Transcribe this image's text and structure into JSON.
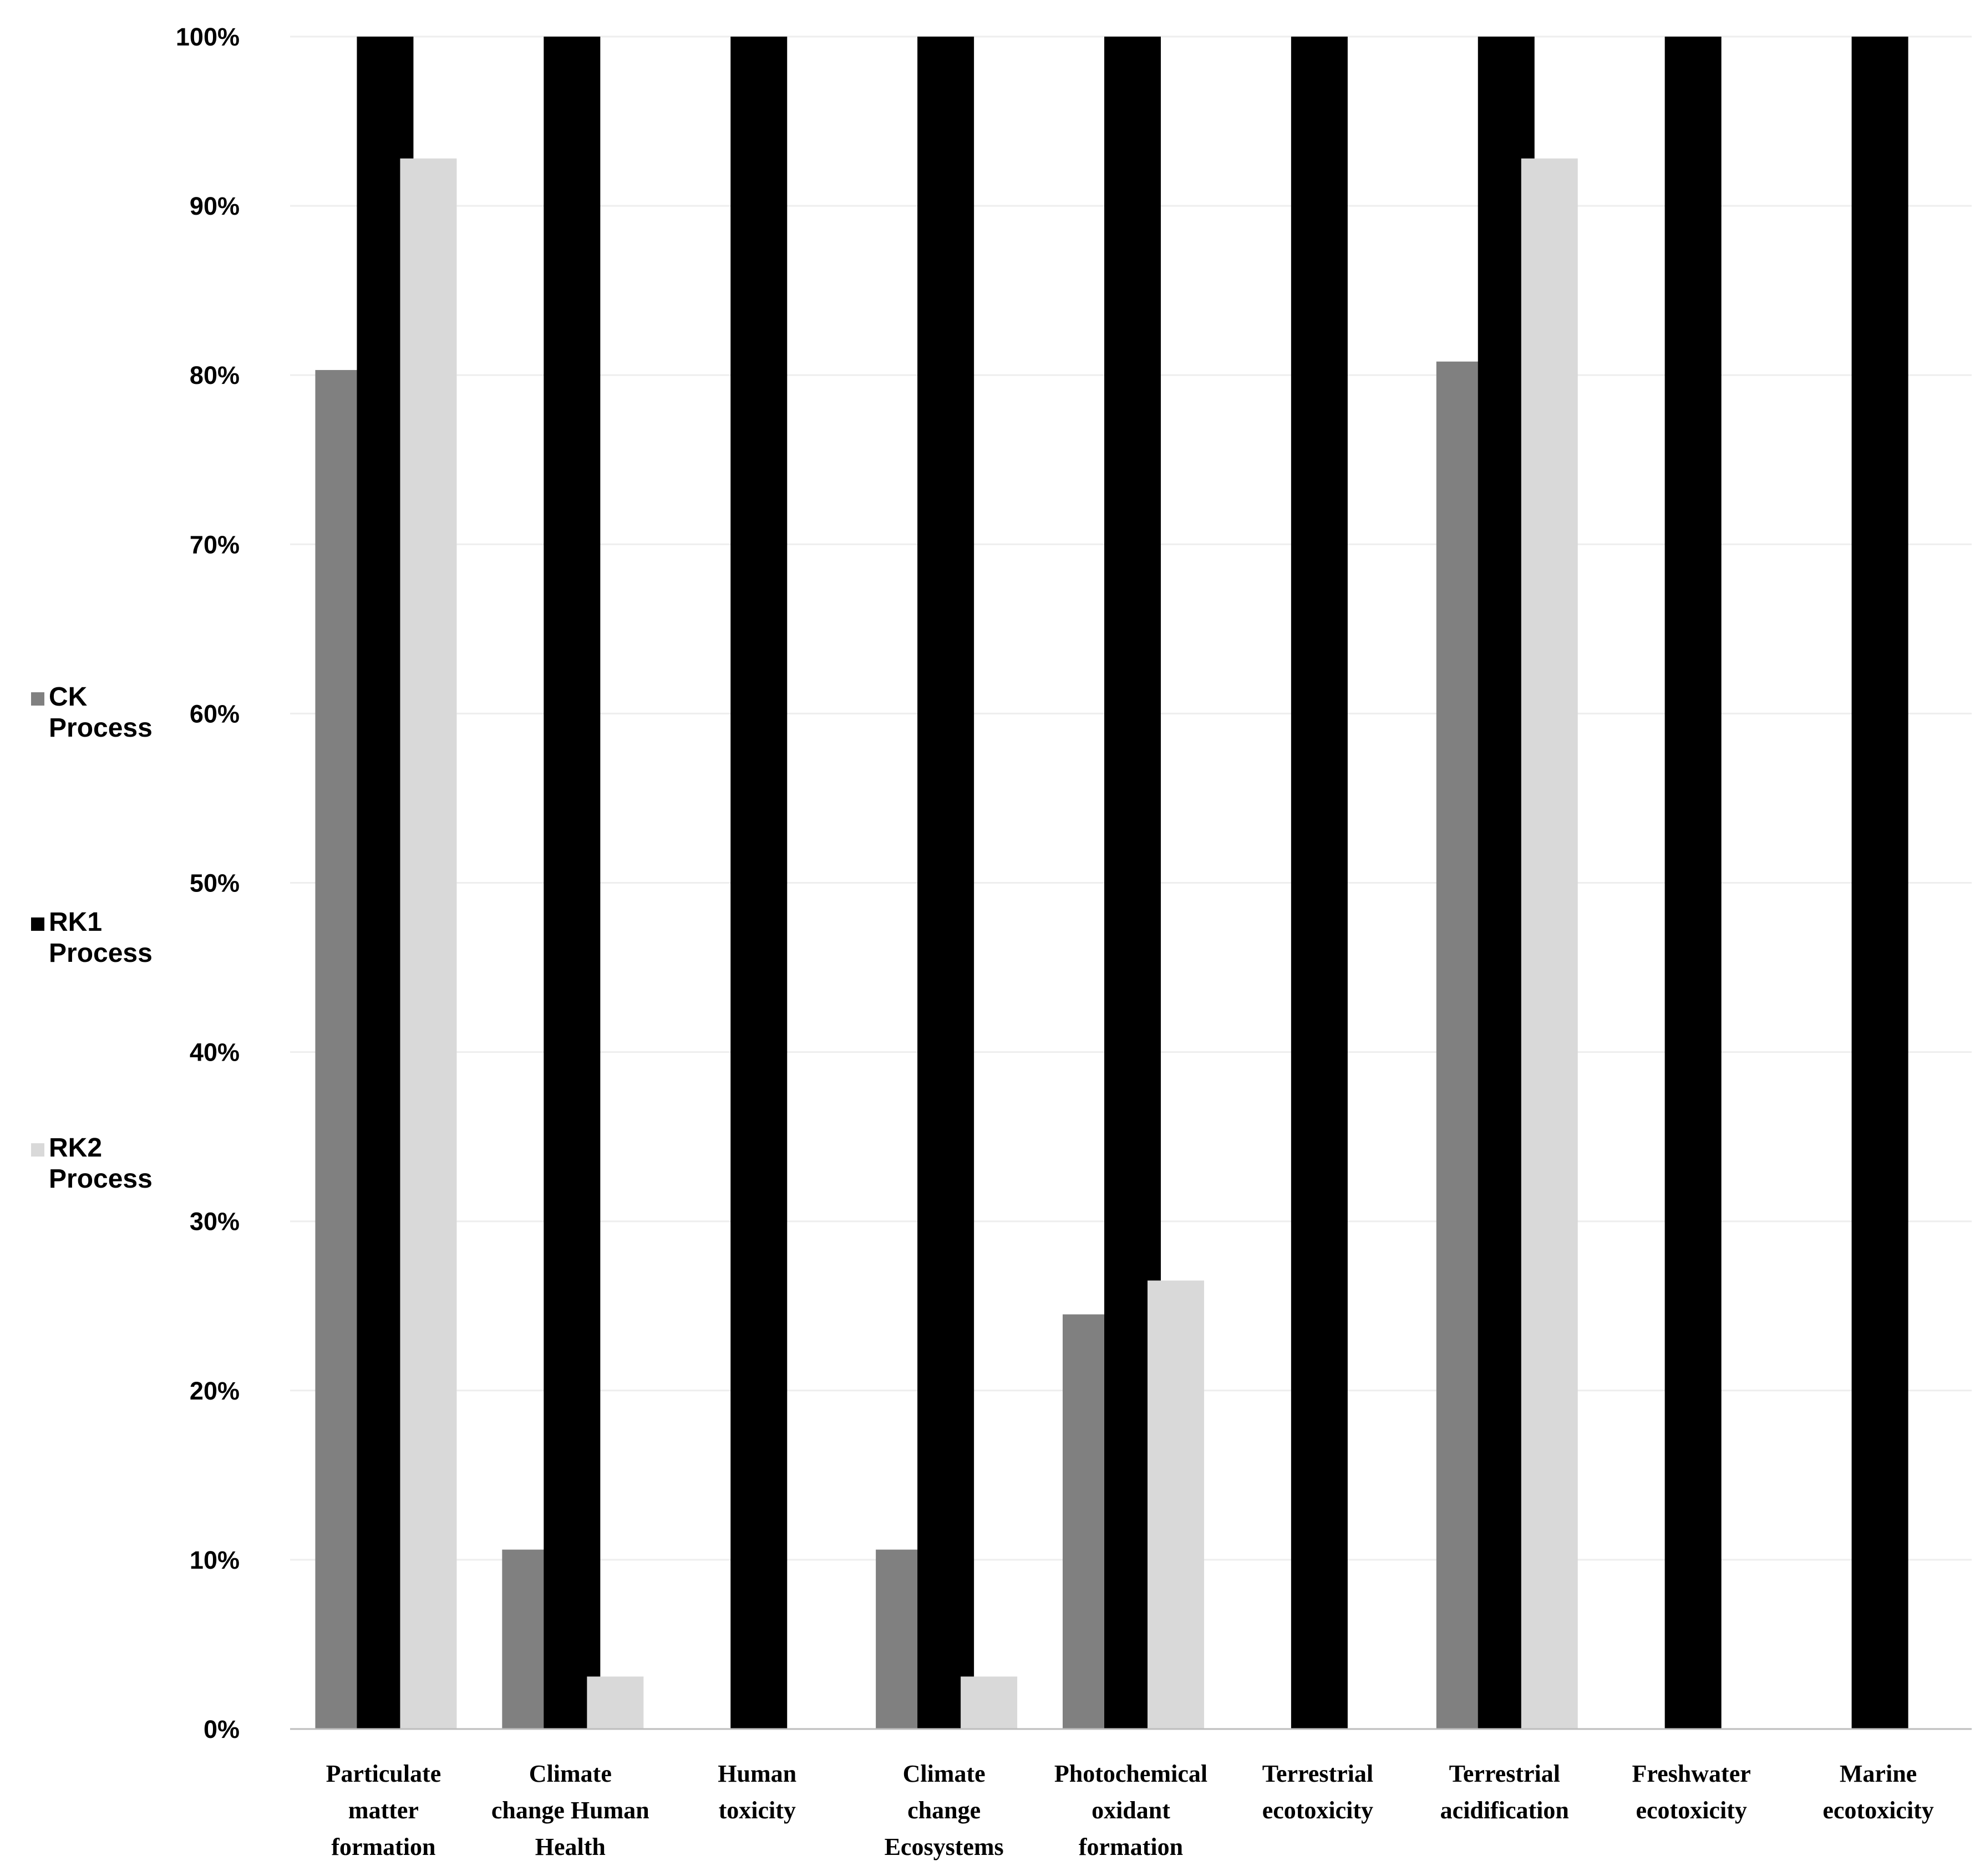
{
  "chart_data": {
    "type": "bar",
    "title": "",
    "xlabel": "",
    "ylabel": "",
    "ylim": [
      0,
      100
    ],
    "yticks": [
      "0%",
      "10%",
      "20%",
      "30%",
      "40%",
      "50%",
      "60%",
      "70%",
      "80%",
      "90%",
      "100%"
    ],
    "grid": true,
    "legend_position": "left",
    "categories": [
      "Particulate matter formation",
      "Climate change Human Health",
      "Human toxicity",
      "Climate change Ecosystems",
      "Photochemical oxidant formation",
      "Terrestrial ecotoxicity",
      "Terrestrial acidification",
      "Freshwater ecotoxicity",
      "Marine ecotoxicity"
    ],
    "category_lines": [
      [
        "Particulate",
        "matter",
        "formation"
      ],
      [
        "Climate",
        "change Human",
        "Health"
      ],
      [
        "Human",
        "toxicity"
      ],
      [
        "Climate",
        "change",
        "Ecosystems"
      ],
      [
        "Photochemical",
        "oxidant",
        "formation"
      ],
      [
        "Terrestrial",
        "ecotoxicity"
      ],
      [
        "Terrestrial",
        "acidification"
      ],
      [
        "Freshwater",
        "ecotoxicity"
      ],
      [
        "Marine",
        "ecotoxicity"
      ]
    ],
    "series": [
      {
        "name": "CK Process",
        "legend_lines": [
          "CK",
          "Process"
        ],
        "color": "#808080",
        "values": [
          80.3,
          10.6,
          0,
          10.6,
          24.5,
          0,
          80.8,
          0,
          0
        ]
      },
      {
        "name": "RK1 Process",
        "legend_lines": [
          "RK1",
          "Process"
        ],
        "color": "#000000",
        "values": [
          100,
          100,
          100,
          100,
          100,
          100,
          100,
          100,
          100
        ]
      },
      {
        "name": "RK2 Process",
        "legend_lines": [
          "RK2",
          "Process"
        ],
        "color": "#d9d9d9",
        "values": [
          92.8,
          3.1,
          0,
          3.1,
          26.5,
          0,
          92.8,
          0,
          0
        ]
      }
    ]
  }
}
